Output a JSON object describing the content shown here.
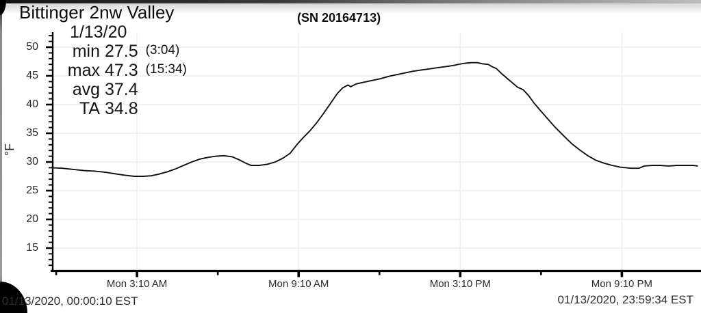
{
  "header": {
    "title": "Bittinger 2nw Valley",
    "serial": "(SN 20164713)"
  },
  "stats": {
    "date": "1/13/20",
    "min": {
      "label": "min",
      "value": "27.5",
      "time": "(3:04)"
    },
    "max": {
      "label": "max",
      "value": "47.3",
      "time": "(15:34)"
    },
    "avg": {
      "label": "avg",
      "value": "37.4",
      "time": ""
    },
    "ta": {
      "label": "TA",
      "value": "34.8",
      "time": ""
    }
  },
  "footer": {
    "start": "01/13/2020, 00:00:10 EST",
    "end": "01/13/2020, 23:59:34 EST"
  },
  "chart_data": {
    "type": "line",
    "title": "Bittinger 2nw Valley (SN 20164713)",
    "ylabel": "°F",
    "xlabel": "",
    "grid": true,
    "line_color": "#101010",
    "grid_color": "#ececec",
    "axis_color": "#000000",
    "ylim": [
      11.5,
      52.5
    ],
    "y_ticks": [
      15,
      20,
      25,
      30,
      35,
      40,
      45,
      50
    ],
    "y_minor_step": 1,
    "xlim_hours": [
      0,
      24.1
    ],
    "x_axis_ticks": [
      {
        "hour": 3.167,
        "label": "Mon 3:10 AM"
      },
      {
        "hour": 9.167,
        "label": "Mon 9:10 AM"
      },
      {
        "hour": 15.167,
        "label": "Mon 3:10 PM"
      },
      {
        "hour": 21.167,
        "label": "Mon 9:10 PM"
      }
    ],
    "x_minor_tick_hours": [
      0.167,
      6.167,
      12.167,
      18.167
    ],
    "annotations": {
      "date": "1/13/20",
      "min": {
        "value": 27.5,
        "time": "3:04"
      },
      "max": {
        "value": 47.3,
        "time": "15:34"
      },
      "avg": 37.4,
      "ta": 34.8,
      "start": "01/13/2020, 00:00:10 EST",
      "end": "01/13/2020, 23:59:34 EST"
    },
    "series": [
      {
        "name": "temperature_f",
        "points": [
          [
            0,
            29.0
          ],
          [
            0.4,
            28.9
          ],
          [
            0.8,
            28.7
          ],
          [
            1.2,
            28.5
          ],
          [
            1.6,
            28.4
          ],
          [
            2.0,
            28.2
          ],
          [
            2.4,
            27.9
          ],
          [
            2.7,
            27.7
          ],
          [
            3.07,
            27.5
          ],
          [
            3.4,
            27.5
          ],
          [
            3.7,
            27.6
          ],
          [
            4.0,
            27.9
          ],
          [
            4.3,
            28.3
          ],
          [
            4.6,
            28.8
          ],
          [
            4.9,
            29.4
          ],
          [
            5.2,
            30.0
          ],
          [
            5.5,
            30.5
          ],
          [
            5.8,
            30.8
          ],
          [
            6.1,
            31.0
          ],
          [
            6.4,
            31.1
          ],
          [
            6.7,
            30.9
          ],
          [
            6.95,
            30.4
          ],
          [
            7.2,
            29.8
          ],
          [
            7.4,
            29.4
          ],
          [
            7.7,
            29.4
          ],
          [
            8.0,
            29.6
          ],
          [
            8.3,
            30.0
          ],
          [
            8.6,
            30.7
          ],
          [
            8.85,
            31.5
          ],
          [
            9.1,
            33.0
          ],
          [
            9.35,
            34.3
          ],
          [
            9.6,
            35.5
          ],
          [
            9.85,
            36.9
          ],
          [
            10.1,
            38.5
          ],
          [
            10.35,
            40.2
          ],
          [
            10.6,
            41.9
          ],
          [
            10.8,
            42.9
          ],
          [
            11.0,
            43.4
          ],
          [
            11.1,
            43.1
          ],
          [
            11.3,
            43.6
          ],
          [
            11.6,
            43.9
          ],
          [
            11.9,
            44.2
          ],
          [
            12.2,
            44.5
          ],
          [
            12.5,
            44.9
          ],
          [
            12.8,
            45.2
          ],
          [
            13.1,
            45.5
          ],
          [
            13.4,
            45.8
          ],
          [
            13.7,
            46.0
          ],
          [
            14.0,
            46.2
          ],
          [
            14.3,
            46.4
          ],
          [
            14.6,
            46.6
          ],
          [
            14.9,
            46.8
          ],
          [
            15.1,
            47.0
          ],
          [
            15.35,
            47.2
          ],
          [
            15.57,
            47.3
          ],
          [
            15.8,
            47.3
          ],
          [
            16.0,
            47.1
          ],
          [
            16.2,
            47.0
          ],
          [
            16.35,
            46.6
          ],
          [
            16.5,
            46.3
          ],
          [
            16.7,
            45.4
          ],
          [
            16.9,
            44.6
          ],
          [
            17.1,
            43.8
          ],
          [
            17.3,
            43.0
          ],
          [
            17.5,
            42.6
          ],
          [
            17.7,
            41.6
          ],
          [
            17.9,
            40.3
          ],
          [
            18.1,
            39.2
          ],
          [
            18.4,
            37.6
          ],
          [
            18.7,
            36.0
          ],
          [
            19.0,
            34.6
          ],
          [
            19.3,
            33.2
          ],
          [
            19.6,
            32.1
          ],
          [
            19.9,
            31.1
          ],
          [
            20.2,
            30.3
          ],
          [
            20.5,
            29.8
          ],
          [
            20.8,
            29.4
          ],
          [
            21.1,
            29.1
          ],
          [
            21.5,
            28.9
          ],
          [
            21.8,
            28.9
          ],
          [
            22.0,
            29.3
          ],
          [
            22.3,
            29.4
          ],
          [
            22.6,
            29.4
          ],
          [
            22.9,
            29.3
          ],
          [
            23.2,
            29.4
          ],
          [
            23.5,
            29.4
          ],
          [
            23.8,
            29.4
          ],
          [
            23.99,
            29.3
          ]
        ]
      }
    ]
  }
}
